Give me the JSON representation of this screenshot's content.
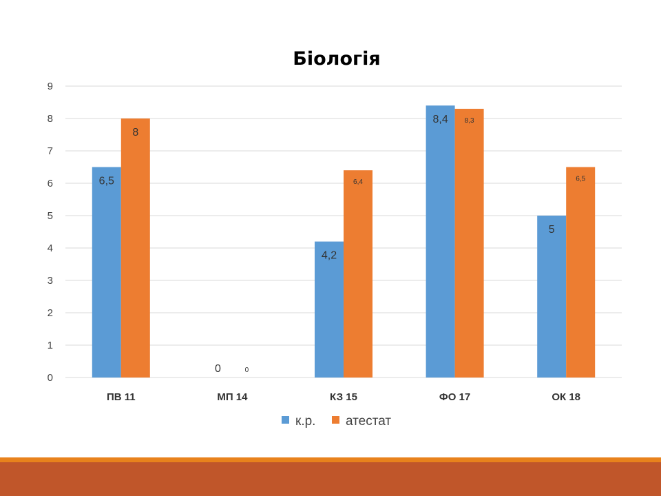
{
  "chart_data": {
    "type": "bar",
    "title": "Біологія",
    "categories": [
      "ПВ 11",
      "МП 14",
      "КЗ 15",
      "ФО 17",
      "ОК 18"
    ],
    "series": [
      {
        "name": "к.р.",
        "color": "#5b9bd5",
        "values": [
          6.5,
          0,
          4.2,
          8.4,
          5
        ],
        "labels": [
          "6,5",
          "0",
          "4,2",
          "8,4",
          "5"
        ]
      },
      {
        "name": "атестат",
        "color": "#ed7d31",
        "values": [
          8,
          0,
          6.4,
          8.3,
          6.5
        ],
        "labels": [
          "8",
          "0",
          "6,4",
          "8,3",
          "6,5"
        ]
      }
    ],
    "ylim": [
      0,
      9
    ],
    "yticks": [
      "0",
      "1",
      "2",
      "3",
      "4",
      "5",
      "6",
      "7",
      "8",
      "9"
    ],
    "grid": true,
    "legend_position": "bottom"
  },
  "theme": {
    "footer_thin_color": "#e8821c",
    "footer_thick_color": "#c0562a",
    "grid_color": "#d9d9d9"
  }
}
